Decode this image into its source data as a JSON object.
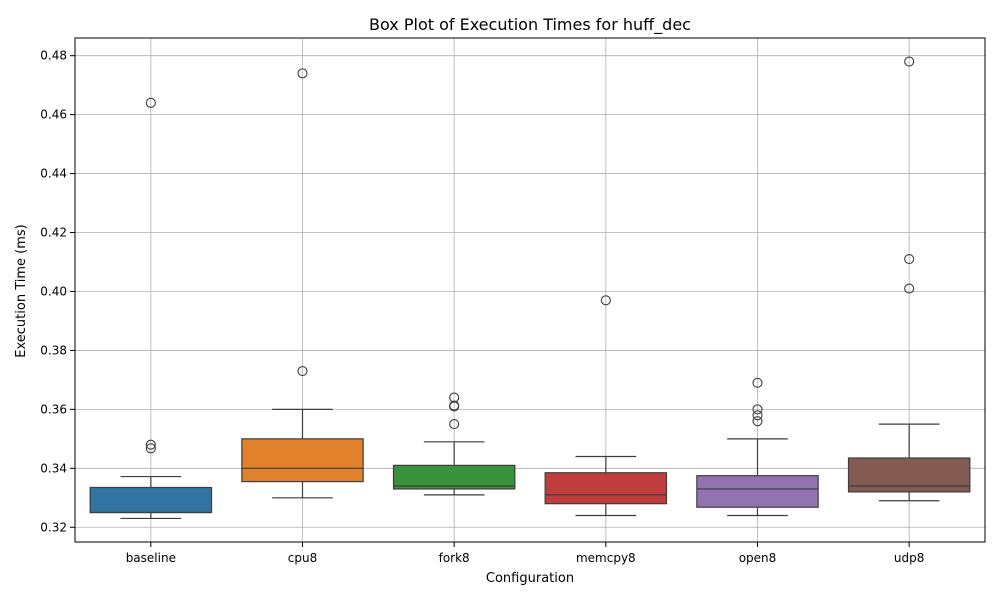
{
  "chart_data": {
    "type": "box",
    "title": "Box Plot of Execution Times for huff_dec",
    "xlabel": "Configuration",
    "ylabel": "Execution Time (ms)",
    "ylim": [
      0.315,
      0.486
    ],
    "yticks": [
      0.32,
      0.34,
      0.36,
      0.38,
      0.4,
      0.42,
      0.44,
      0.46,
      0.48
    ],
    "ytick_labels": [
      "0.32",
      "0.34",
      "0.36",
      "0.38",
      "0.40",
      "0.42",
      "0.44",
      "0.46",
      "0.48"
    ],
    "grid": true,
    "categories": [
      "baseline",
      "cpu8",
      "fork8",
      "memcpy8",
      "open8",
      "udp8"
    ],
    "series": [
      {
        "category": "baseline",
        "color": "#3274a1",
        "whisker_low": 0.323,
        "q1": 0.325,
        "median": 0.325,
        "q3": 0.3335,
        "whisker_high": 0.3372,
        "outliers": [
          0.3468,
          0.348,
          0.464
        ]
      },
      {
        "category": "cpu8",
        "color": "#e1812c",
        "whisker_low": 0.33,
        "q1": 0.3355,
        "median": 0.34,
        "q3": 0.35,
        "whisker_high": 0.36,
        "outliers": [
          0.373,
          0.474
        ]
      },
      {
        "category": "fork8",
        "color": "#3a923a",
        "whisker_low": 0.331,
        "q1": 0.333,
        "median": 0.334,
        "q3": 0.341,
        "whisker_high": 0.349,
        "outliers": [
          0.355,
          0.361,
          0.3613,
          0.364
        ]
      },
      {
        "category": "memcpy8",
        "color": "#c03d3e",
        "whisker_low": 0.324,
        "q1": 0.328,
        "median": 0.331,
        "q3": 0.3385,
        "whisker_high": 0.344,
        "outliers": [
          0.397
        ]
      },
      {
        "category": "open8",
        "color": "#9372b2",
        "whisker_low": 0.324,
        "q1": 0.3268,
        "median": 0.333,
        "q3": 0.3375,
        "whisker_high": 0.35,
        "outliers": [
          0.356,
          0.358,
          0.36,
          0.369
        ]
      },
      {
        "category": "udp8",
        "color": "#845b53",
        "whisker_low": 0.329,
        "q1": 0.332,
        "median": 0.334,
        "q3": 0.3435,
        "whisker_high": 0.355,
        "outliers": [
          0.401,
          0.411,
          0.478
        ]
      }
    ]
  }
}
